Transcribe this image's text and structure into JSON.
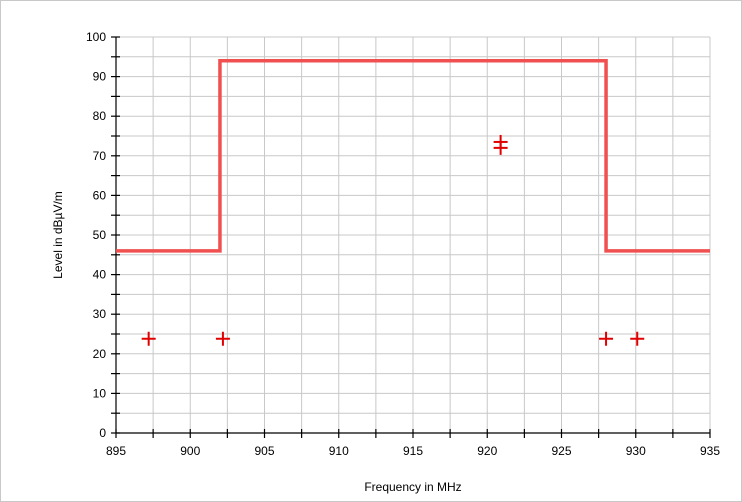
{
  "chart_data": {
    "type": "line",
    "title": "",
    "xlabel": "Frequency in MHz",
    "ylabel": "Level in dBµV/m",
    "xlim": [
      895,
      935
    ],
    "ylim": [
      0,
      100
    ],
    "x_ticks": [
      895,
      900,
      905,
      910,
      915,
      920,
      925,
      930,
      935
    ],
    "y_ticks": [
      0,
      10,
      20,
      30,
      40,
      50,
      60,
      70,
      80,
      90,
      100
    ],
    "grid": true,
    "series": [
      {
        "kind": "line",
        "color": "#f05050",
        "points": [
          {
            "x": 895,
            "y": 46
          },
          {
            "x": 902,
            "y": 46
          },
          {
            "x": 902,
            "y": 94
          },
          {
            "x": 928,
            "y": 94
          },
          {
            "x": 928,
            "y": 46
          },
          {
            "x": 935,
            "y": 46
          }
        ]
      },
      {
        "kind": "scatter",
        "marker": "plus",
        "color": "#e00000",
        "points": [
          {
            "x": 897.2,
            "y": 23.8
          },
          {
            "x": 902.2,
            "y": 23.8
          },
          {
            "x": 920.9,
            "y": 73.5
          },
          {
            "x": 920.9,
            "y": 72.0
          },
          {
            "x": 928.0,
            "y": 23.8
          },
          {
            "x": 930.1,
            "y": 23.8
          }
        ]
      }
    ]
  }
}
